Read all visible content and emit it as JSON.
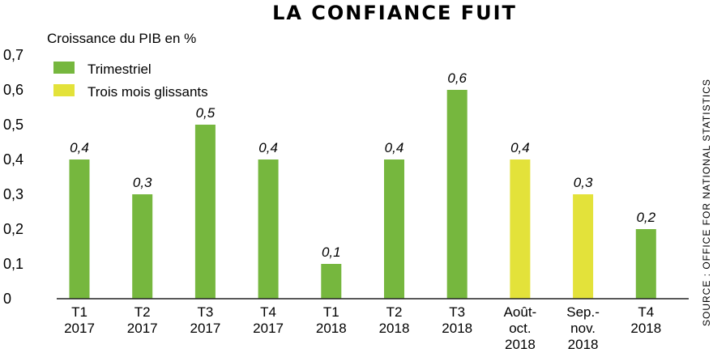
{
  "chart_data": {
    "type": "bar",
    "title": "LA CONFIANCE FUIT",
    "ylabel": "Croissance du PIB en %",
    "source": "SOURCE : OFFICE FOR NATIONAL STATISTICS",
    "ylim": [
      0,
      0.7
    ],
    "yticks": [
      0,
      0.1,
      0.2,
      0.3,
      0.4,
      0.5,
      0.6,
      0.7
    ],
    "ytick_labels": [
      "0",
      "0,1",
      "0,2",
      "0,3",
      "0,4",
      "0,5",
      "0,6",
      "0,7"
    ],
    "legend": {
      "placement": "top-left",
      "entries": [
        {
          "name": "Trimestriel",
          "color": "#76b73e"
        },
        {
          "name": "Trois mois glissants",
          "color": "#e3e23a"
        }
      ]
    },
    "categories": [
      [
        "T1",
        "2017"
      ],
      [
        "T2",
        "2017"
      ],
      [
        "T3",
        "2017"
      ],
      [
        "T4",
        "2017"
      ],
      [
        "T1",
        "2018"
      ],
      [
        "T2",
        "2018"
      ],
      [
        "T3",
        "2018"
      ],
      [
        "Août-",
        "oct.",
        "2018"
      ],
      [
        "Sep.-",
        "nov.",
        "2018"
      ],
      [
        "T4",
        "2018"
      ]
    ],
    "values": [
      0.4,
      0.3,
      0.5,
      0.4,
      0.1,
      0.4,
      0.6,
      0.4,
      0.3,
      0.2
    ],
    "value_labels": [
      "0,4",
      "0,3",
      "0,5",
      "0,4",
      "0,1",
      "0,4",
      "0,6",
      "0,4",
      "0,3",
      "0,2"
    ],
    "series_index": [
      0,
      0,
      0,
      0,
      0,
      0,
      0,
      1,
      1,
      0
    ]
  }
}
